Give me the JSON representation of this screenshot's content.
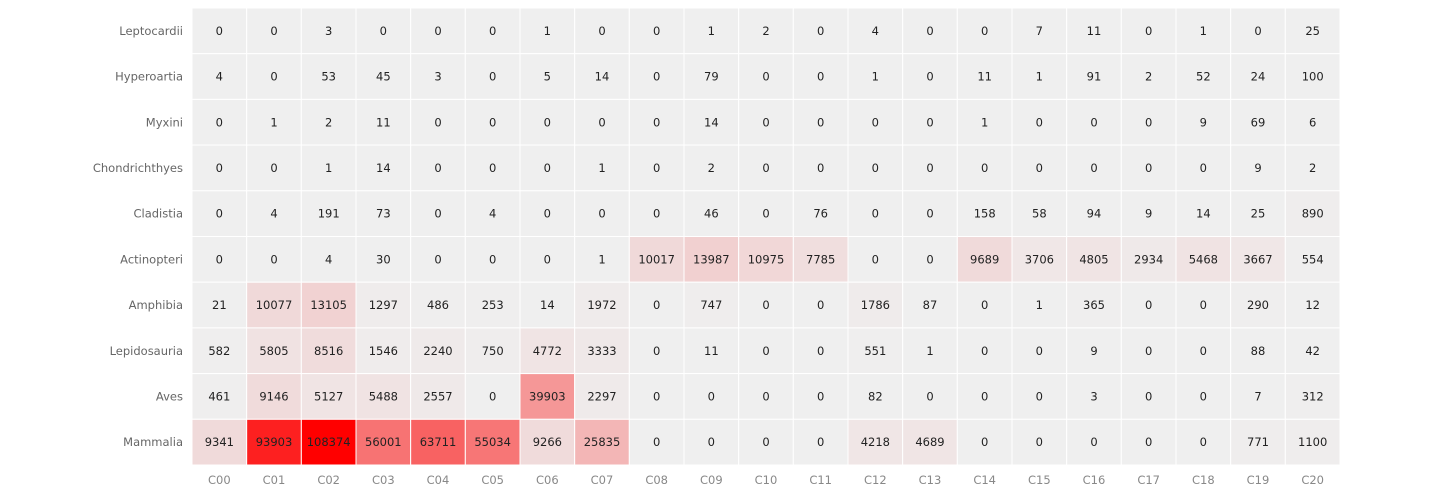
{
  "chart_data": {
    "type": "heatmap",
    "title": "",
    "xlabel": "",
    "ylabel": "",
    "x": [
      "C00",
      "C01",
      "C02",
      "C03",
      "C04",
      "C05",
      "C06",
      "C07",
      "C08",
      "C09",
      "C10",
      "C11",
      "C12",
      "C13",
      "C14",
      "C15",
      "C16",
      "C17",
      "C18",
      "C19",
      "C20"
    ],
    "y": [
      "Leptocardii",
      "Hyperoartia",
      "Myxini",
      "Chondrichthyes",
      "Cladistia",
      "Actinopteri",
      "Amphibia",
      "Lepidosauria",
      "Aves",
      "Mammalia"
    ],
    "values": [
      [
        0,
        0,
        3,
        0,
        0,
        0,
        1,
        0,
        0,
        1,
        2,
        0,
        4,
        0,
        0,
        7,
        11,
        0,
        1,
        0,
        25
      ],
      [
        4,
        0,
        53,
        45,
        3,
        0,
        5,
        14,
        0,
        79,
        0,
        0,
        1,
        0,
        11,
        1,
        91,
        2,
        52,
        24,
        100
      ],
      [
        0,
        1,
        2,
        11,
        0,
        0,
        0,
        0,
        0,
        14,
        0,
        0,
        0,
        0,
        1,
        0,
        0,
        0,
        9,
        69,
        6
      ],
      [
        0,
        0,
        1,
        14,
        0,
        0,
        0,
        1,
        0,
        2,
        0,
        0,
        0,
        0,
        0,
        0,
        0,
        0,
        0,
        9,
        2
      ],
      [
        0,
        4,
        191,
        73,
        0,
        4,
        0,
        0,
        0,
        46,
        0,
        76,
        0,
        0,
        158,
        58,
        94,
        9,
        14,
        25,
        890
      ],
      [
        0,
        0,
        4,
        30,
        0,
        0,
        0,
        1,
        10017,
        13987,
        10975,
        7785,
        0,
        0,
        9689,
        3706,
        4805,
        2934,
        5468,
        3667,
        554
      ],
      [
        21,
        10077,
        13105,
        1297,
        486,
        253,
        14,
        1972,
        0,
        747,
        0,
        0,
        1786,
        87,
        0,
        1,
        365,
        0,
        0,
        290,
        12
      ],
      [
        582,
        5805,
        8516,
        1546,
        2240,
        750,
        4772,
        3333,
        0,
        11,
        0,
        0,
        551,
        1,
        0,
        0,
        9,
        0,
        0,
        88,
        42
      ],
      [
        461,
        9146,
        5127,
        5488,
        2557,
        0,
        39903,
        2297,
        0,
        0,
        0,
        0,
        82,
        0,
        0,
        0,
        3,
        0,
        0,
        7,
        312
      ],
      [
        9341,
        93903,
        108374,
        56001,
        63711,
        55034,
        9266,
        25835,
        0,
        0,
        0,
        0,
        4218,
        4689,
        0,
        0,
        0,
        0,
        0,
        771,
        1100
      ]
    ],
    "colorscale": {
      "min_color": "#efefef",
      "max_color": "#ff0000",
      "min": 0,
      "max": 108374
    },
    "grid": true
  }
}
